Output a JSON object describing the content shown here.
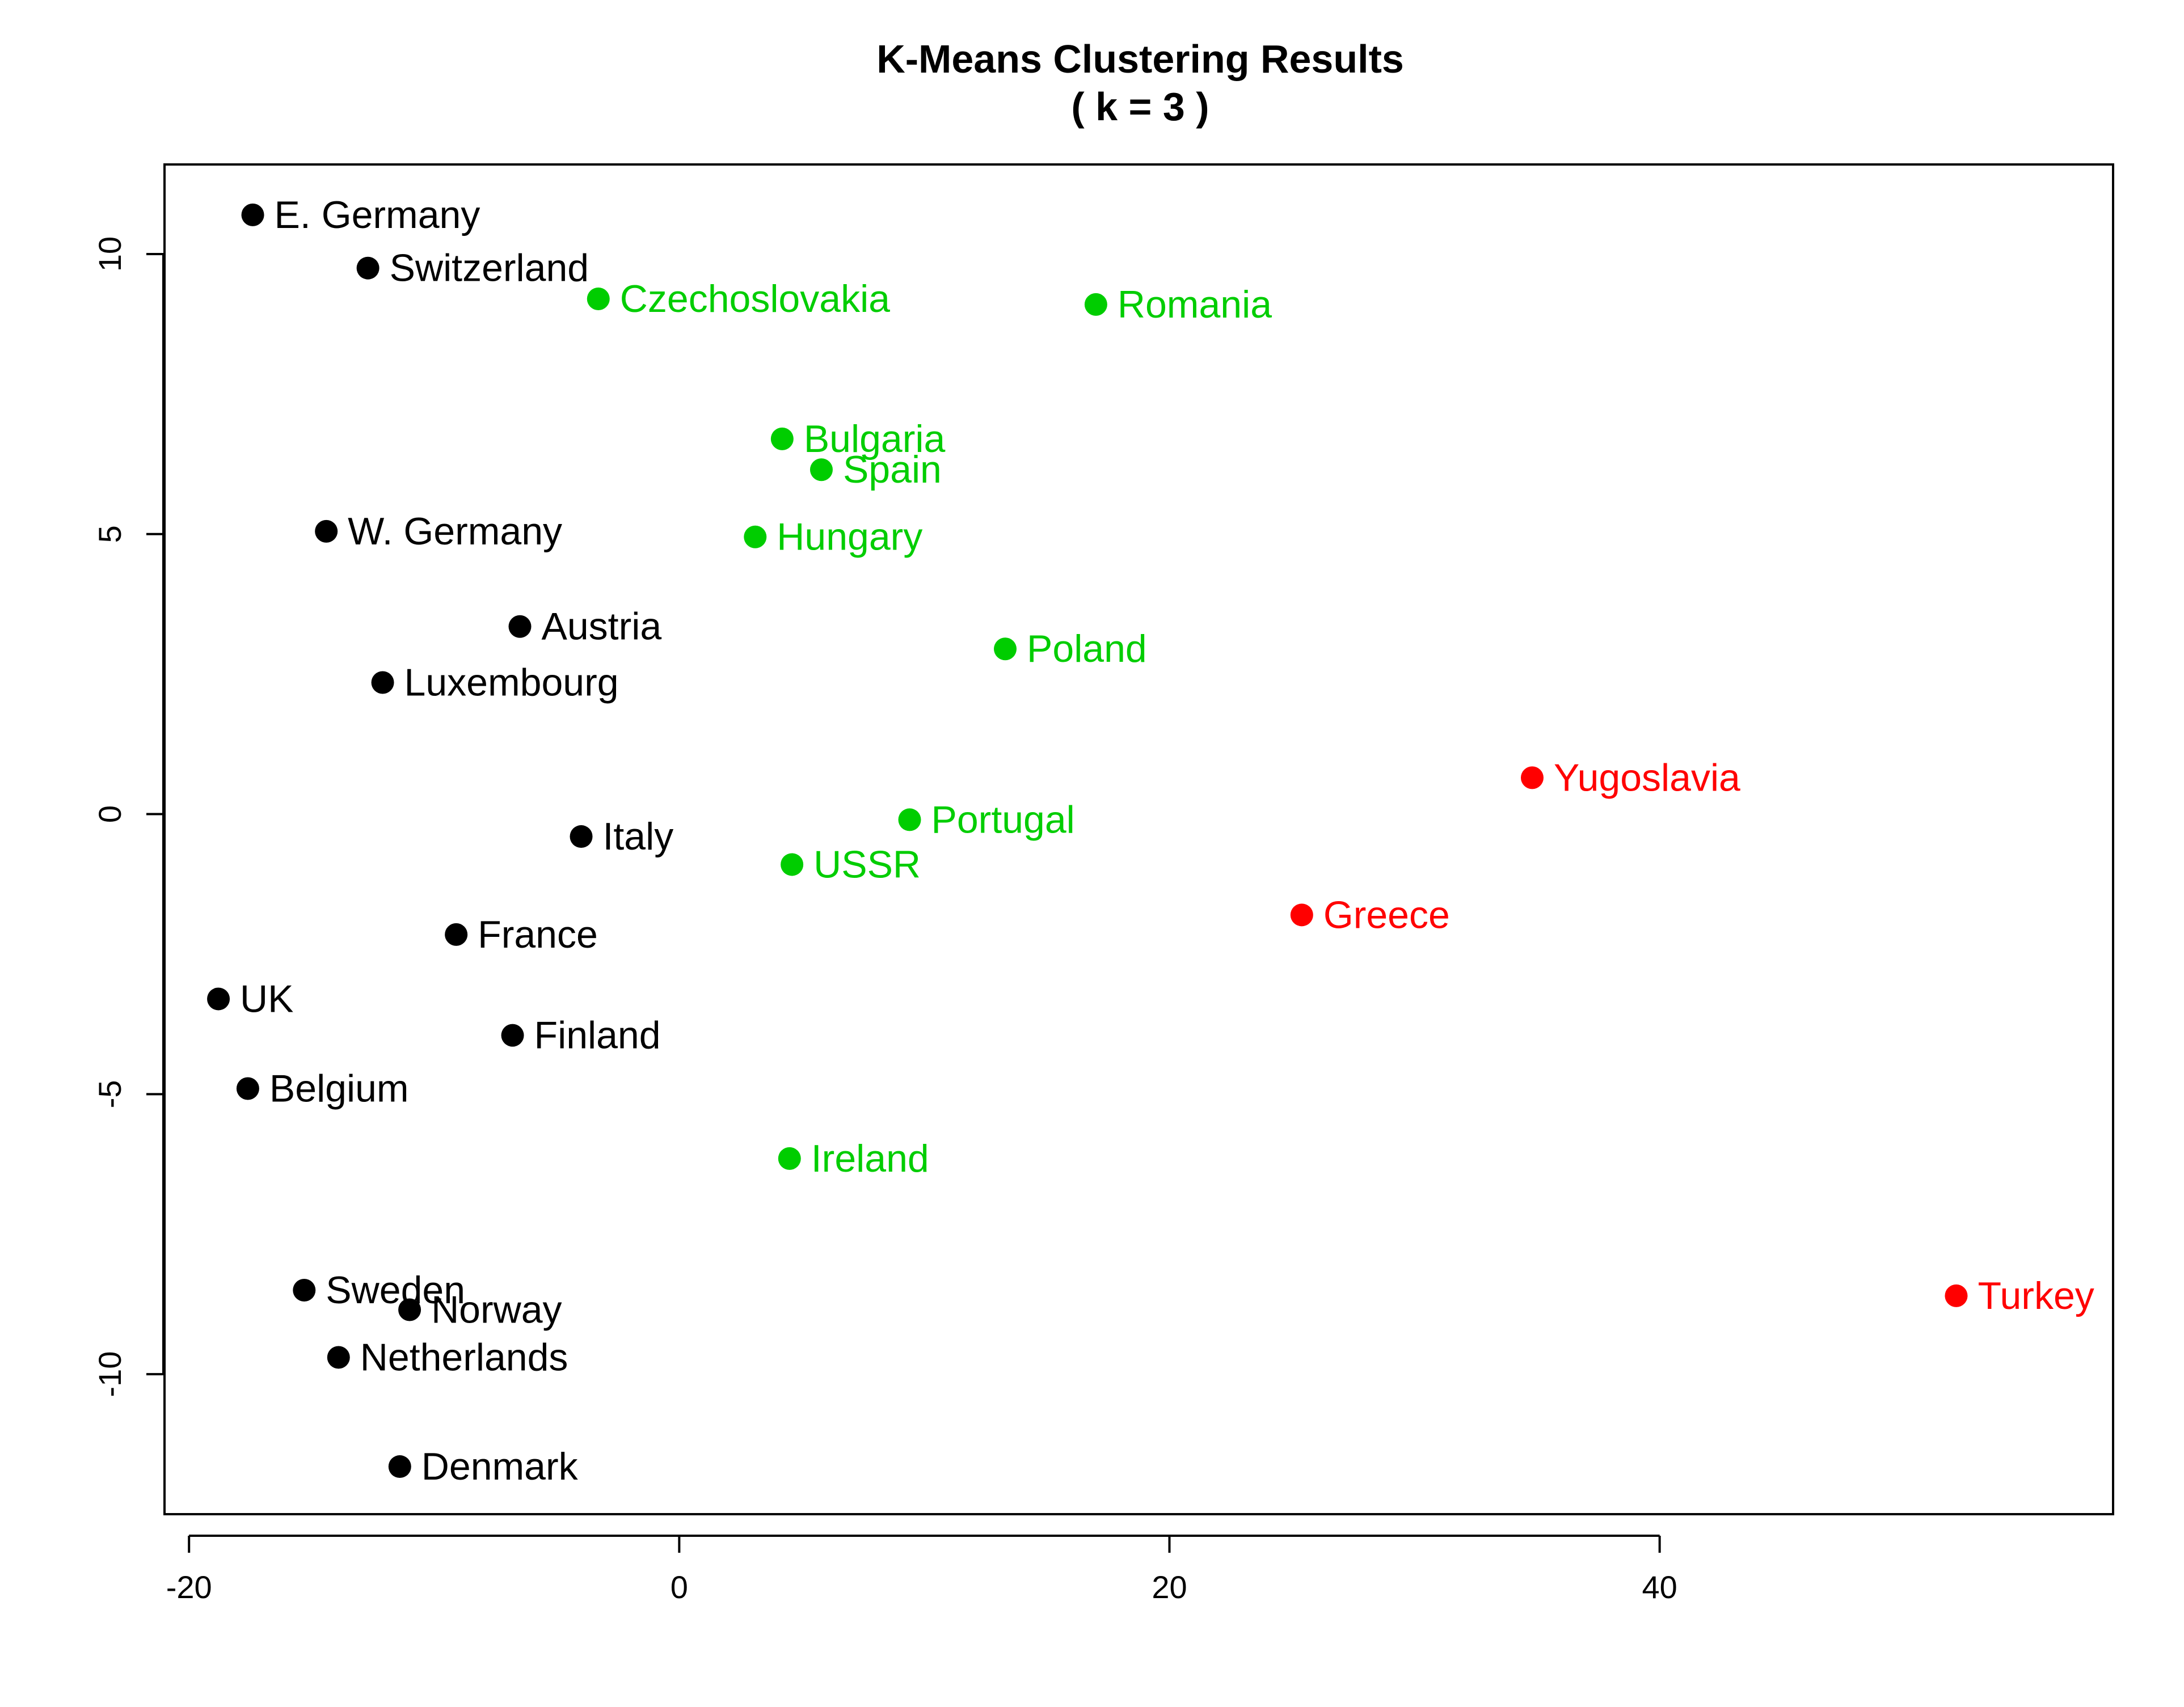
{
  "chart_data": {
    "type": "scatter",
    "title": "K-Means Clustering Results",
    "subtitle": "( k =  3 )",
    "xlabel": "",
    "ylabel": "",
    "xlim": [
      -21,
      58.5
    ],
    "ylim": [
      -12.5,
      11.6
    ],
    "xticks": [
      -20,
      0,
      20,
      40
    ],
    "yticks": [
      -10,
      -5,
      0,
      5,
      10
    ],
    "grid": false,
    "legend": "none",
    "cluster_colors": {
      "1": "#000000",
      "2": "#00CD00",
      "3": "#FF0000"
    },
    "points": [
      {
        "label": "E. Germany",
        "x": -17.4,
        "y": 10.7,
        "cluster": 1
      },
      {
        "label": "Switzerland",
        "x": -12.7,
        "y": 9.75,
        "cluster": 1
      },
      {
        "label": "W. Germany",
        "x": -14.4,
        "y": 5.05,
        "cluster": 1
      },
      {
        "label": "Austria",
        "x": -6.5,
        "y": 3.35,
        "cluster": 1
      },
      {
        "label": "Luxembourg",
        "x": -12.1,
        "y": 2.35,
        "cluster": 1
      },
      {
        "label": "Italy",
        "x": -4.0,
        "y": -0.4,
        "cluster": 1
      },
      {
        "label": "France",
        "x": -9.1,
        "y": -2.15,
        "cluster": 1
      },
      {
        "label": "UK",
        "x": -18.8,
        "y": -3.3,
        "cluster": 1
      },
      {
        "label": "Finland",
        "x": -6.8,
        "y": -3.95,
        "cluster": 1
      },
      {
        "label": "Belgium",
        "x": -17.6,
        "y": -4.9,
        "cluster": 1
      },
      {
        "label": "Sweden",
        "x": -15.3,
        "y": -8.5,
        "cluster": 1
      },
      {
        "label": "Norway",
        "x": -11.0,
        "y": -8.85,
        "cluster": 1
      },
      {
        "label": "Netherlands",
        "x": -13.9,
        "y": -9.7,
        "cluster": 1
      },
      {
        "label": "Denmark",
        "x": -11.4,
        "y": -11.65,
        "cluster": 1
      },
      {
        "label": "Czechoslovakia",
        "x": -3.3,
        "y": 9.2,
        "cluster": 2
      },
      {
        "label": "Romania",
        "x": 17.0,
        "y": 9.1,
        "cluster": 2
      },
      {
        "label": "Bulgaria",
        "x": 4.2,
        "y": 6.7,
        "cluster": 2
      },
      {
        "label": "Spain",
        "x": 5.8,
        "y": 6.15,
        "cluster": 2
      },
      {
        "label": "Hungary",
        "x": 3.1,
        "y": 4.95,
        "cluster": 2
      },
      {
        "label": "Poland",
        "x": 13.3,
        "y": 2.95,
        "cluster": 2
      },
      {
        "label": "Portugal",
        "x": 9.4,
        "y": -0.1,
        "cluster": 2
      },
      {
        "label": "USSR",
        "x": 4.6,
        "y": -0.9,
        "cluster": 2
      },
      {
        "label": "Ireland",
        "x": 4.5,
        "y": -6.15,
        "cluster": 2
      },
      {
        "label": "Yugoslavia",
        "x": 34.8,
        "y": 0.65,
        "cluster": 3
      },
      {
        "label": "Greece",
        "x": 25.4,
        "y": -1.8,
        "cluster": 3
      },
      {
        "label": "Turkey",
        "x": 52.1,
        "y": -8.6,
        "cluster": 3
      }
    ]
  }
}
